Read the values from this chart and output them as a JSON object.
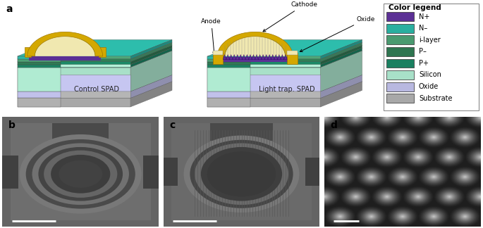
{
  "panel_labels": [
    "a",
    "b",
    "c",
    "d"
  ],
  "panel_label_fontsize": 10,
  "panel_label_fontweight": "bold",
  "legend_title": "Color legend",
  "legend_title_fontsize": 7.5,
  "legend_items": [
    {
      "label": "N+",
      "color": "#5b3095"
    },
    {
      "label": "N–",
      "color": "#2aafa0"
    },
    {
      "label": "i-layer",
      "color": "#4a9a70"
    },
    {
      "label": "P–",
      "color": "#2e7550"
    },
    {
      "label": "P+",
      "color": "#1a8060"
    },
    {
      "label": "Silicon",
      "color": "#a8e0c8"
    },
    {
      "label": "Oxide",
      "color": "#b8b8e0"
    },
    {
      "label": "Substrate",
      "color": "#a8a8a8"
    }
  ],
  "legend_fontsize": 7,
  "c_silicon": "#a8e0c8",
  "c_oxide_layer": "#b8b8e0",
  "c_substrate": "#a8a8a8",
  "c_nplus": "#5b3095",
  "c_nminus": "#2aafa0",
  "c_ilayer": "#4a9a70",
  "c_pminus": "#2e7550",
  "c_pplus": "#1a8060",
  "c_yellow": "#d4a800",
  "c_yellow_dark": "#a07800",
  "c_beige": "#f0e8b0",
  "c_gray_top": "#d8d8c0",
  "c_white_bg": "#ffffff",
  "control_spad_label": "Control SPAD",
  "lighttrap_spad_label": "Light trap. SPAD",
  "scalebar_color": "#ffffff",
  "sem_bg": "#686868",
  "sem_dark": "#3a3a3a",
  "sem_ring_light": "#888888",
  "sem_ring_dark": "#4a4a4a"
}
